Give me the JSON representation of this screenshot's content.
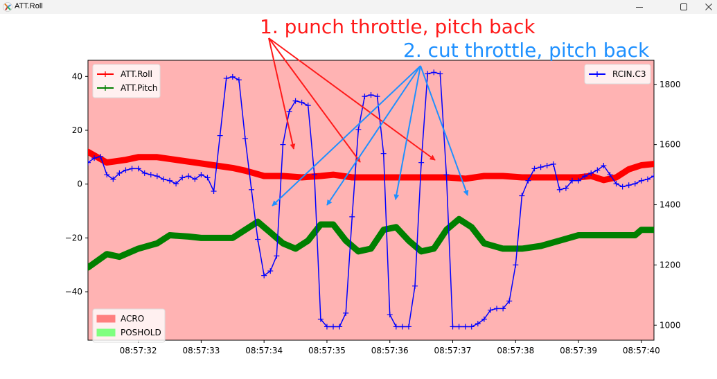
{
  "window": {
    "title": "ATT.Roll",
    "icon": "matplotlib-icon",
    "controls": {
      "minimize": "minimize-icon",
      "maximize": "maximize-icon",
      "close": "close-icon"
    }
  },
  "annotations": {
    "punch": {
      "text": "1. punch throttle, pitch back",
      "color": "#ff1a1a"
    },
    "cut": {
      "text": "2. cut throttle, pitch back",
      "color": "#1e90ff"
    }
  },
  "legend_left_top": [
    {
      "label": "ATT.Roll",
      "color": "#ff0000"
    },
    {
      "label": "ATT.Pitch",
      "color": "#007f00"
    }
  ],
  "legend_right_top": [
    {
      "label": "RCIN.C3",
      "color": "#0000ff"
    }
  ],
  "legend_left_bottom": [
    {
      "label": "ACRO",
      "color": "#ff7f7f"
    },
    {
      "label": "POSHOLD",
      "color": "#7fff7f"
    }
  ],
  "colors": {
    "plot_background": "#ffb3b3",
    "roll": "#ff0000",
    "pitch": "#007f00",
    "rcin": "#0000ff"
  },
  "chart_data": {
    "type": "line",
    "title": "ATT.Roll",
    "xlabel": "",
    "ylabel_left": "",
    "ylabel_right": "",
    "x_ticks": [
      "08:57:32",
      "08:57:33",
      "08:57:34",
      "08:57:35",
      "08:57:36",
      "08:57:37",
      "08:57:38",
      "08:57:39",
      "08:57:40"
    ],
    "y_left_ticks": [
      "40",
      "20",
      "0",
      "−20",
      "−40"
    ],
    "y_right_ticks": [
      "1800",
      "1600",
      "1400",
      "1200",
      "1000"
    ],
    "xlim_seconds": [
      31.2,
      40.2
    ],
    "ylim_left": [
      -58,
      46
    ],
    "ylim_right": [
      950,
      1880
    ],
    "grid": false,
    "legend_positions": [
      "upper left",
      "upper right",
      "lower left"
    ],
    "background_mode": "ACRO",
    "series": [
      {
        "name": "ATT.Roll",
        "axis": "left",
        "x": [
          31.2,
          31.5,
          31.8,
          32.0,
          32.3,
          32.6,
          32.9,
          33.2,
          33.5,
          33.7,
          34.0,
          34.3,
          34.6,
          34.9,
          35.1,
          35.4,
          35.7,
          36.0,
          36.3,
          36.6,
          36.9,
          37.2,
          37.5,
          37.8,
          38.1,
          38.4,
          38.7,
          39.0,
          39.2,
          39.4,
          39.6,
          39.8,
          40.0,
          40.2
        ],
        "values": [
          12,
          8,
          9,
          10,
          10,
          9,
          8,
          7,
          6,
          5,
          3,
          3,
          2.5,
          3,
          3.5,
          2.5,
          2.5,
          2.5,
          2.5,
          2.5,
          2.5,
          2,
          3,
          3,
          2.5,
          2.5,
          2.5,
          2.5,
          3,
          1.5,
          2.5,
          5.5,
          7,
          7.5
        ]
      },
      {
        "name": "ATT.Pitch",
        "axis": "left",
        "x": [
          31.2,
          31.5,
          31.7,
          32.0,
          32.3,
          32.5,
          32.8,
          33.0,
          33.3,
          33.5,
          33.7,
          33.9,
          34.1,
          34.3,
          34.5,
          34.7,
          34.9,
          35.1,
          35.3,
          35.5,
          35.7,
          35.9,
          36.1,
          36.3,
          36.5,
          36.7,
          36.9,
          37.1,
          37.3,
          37.5,
          37.8,
          38.1,
          38.4,
          38.7,
          39.0,
          39.3,
          39.6,
          39.9,
          40.0,
          40.2
        ],
        "values": [
          -31,
          -26,
          -27,
          -24,
          -22,
          -19,
          -19.5,
          -20,
          -20,
          -20,
          -17,
          -14,
          -18,
          -22,
          -24,
          -21,
          -15,
          -15,
          -21,
          -25,
          -24,
          -17,
          -16,
          -21,
          -25,
          -24,
          -17,
          -13,
          -16,
          -22,
          -24,
          -24,
          -23,
          -21,
          -19,
          -19,
          -19,
          -19,
          -17,
          -17
        ]
      },
      {
        "name": "RCIN.C3",
        "axis": "right",
        "x": [
          31.2,
          31.3,
          31.4,
          31.5,
          31.6,
          31.7,
          31.8,
          31.9,
          32.0,
          32.1,
          32.2,
          32.3,
          32.4,
          32.5,
          32.6,
          32.7,
          32.8,
          32.9,
          33.0,
          33.1,
          33.2,
          33.3,
          33.4,
          33.5,
          33.6,
          33.7,
          33.8,
          33.9,
          34.0,
          34.1,
          34.2,
          34.3,
          34.4,
          34.5,
          34.6,
          34.7,
          34.8,
          34.9,
          35.0,
          35.1,
          35.2,
          35.3,
          35.4,
          35.5,
          35.6,
          35.7,
          35.8,
          35.9,
          36.0,
          36.1,
          36.2,
          36.3,
          36.4,
          36.5,
          36.6,
          36.7,
          36.8,
          36.9,
          37.0,
          37.1,
          37.2,
          37.3,
          37.4,
          37.5,
          37.6,
          37.7,
          37.8,
          37.9,
          38.0,
          38.1,
          38.2,
          38.3,
          38.4,
          38.5,
          38.6,
          38.7,
          38.8,
          38.9,
          39.0,
          39.1,
          39.2,
          39.3,
          39.4,
          39.5,
          39.6,
          39.7,
          39.8,
          39.9,
          40.0,
          40.1,
          40.2
        ],
        "values": [
          1540,
          1555,
          1560,
          1500,
          1485,
          1505,
          1515,
          1520,
          1520,
          1505,
          1500,
          1495,
          1485,
          1480,
          1470,
          1490,
          1495,
          1485,
          1500,
          1490,
          1445,
          1630,
          1820,
          1825,
          1815,
          1620,
          1450,
          1285,
          1165,
          1180,
          1230,
          1600,
          1710,
          1745,
          1740,
          1730,
          1500,
          1020,
          995,
          995,
          995,
          1040,
          1360,
          1650,
          1760,
          1765,
          1760,
          1570,
          1035,
          995,
          995,
          995,
          1130,
          1540,
          1835,
          1840,
          1835,
          1500,
          995,
          995,
          995,
          995,
          1005,
          1020,
          1050,
          1055,
          1055,
          1080,
          1200,
          1430,
          1480,
          1520,
          1525,
          1530,
          1535,
          1450,
          1455,
          1480,
          1480,
          1495,
          1505,
          1515,
          1530,
          1500,
          1470,
          1460,
          1465,
          1470,
          1480,
          1485,
          1495
        ]
      }
    ]
  }
}
